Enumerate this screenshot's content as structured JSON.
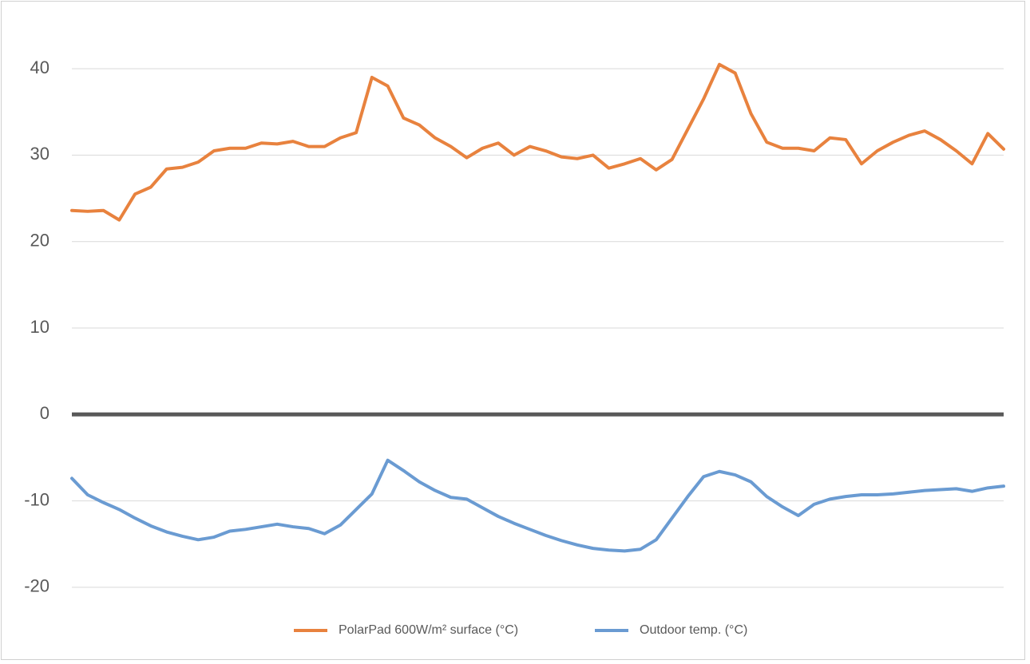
{
  "chart_data": {
    "type": "line",
    "ylim": [
      -25,
      45
    ],
    "yticks": [
      -20,
      -10,
      0,
      10,
      20,
      30,
      40
    ],
    "grid": true,
    "legend": "bottom",
    "series": [
      {
        "name": "PolarPad 600W/m² surface (°C)",
        "color": "#e8823e",
        "values": [
          23.6,
          23.5,
          23.6,
          22.5,
          25.5,
          26.3,
          28.4,
          28.6,
          29.2,
          30.5,
          30.8,
          30.8,
          31.4,
          31.3,
          31.6,
          31.0,
          31.0,
          32.0,
          32.6,
          39.0,
          38.0,
          34.3,
          33.5,
          32.0,
          31.0,
          29.7,
          30.8,
          31.4,
          30.0,
          31.0,
          30.5,
          29.8,
          29.6,
          30.0,
          28.5,
          29.0,
          29.6,
          28.3,
          29.5,
          33.0,
          36.5,
          40.5,
          39.5,
          34.8,
          31.5,
          30.8,
          30.8,
          30.5,
          32.0,
          31.8,
          29.0,
          30.5,
          31.5,
          32.3,
          32.8,
          31.8,
          30.5,
          29.0,
          32.5,
          30.7
        ]
      },
      {
        "name": "Outdoor temp. (°C)",
        "color": "#6a9bd2",
        "values": [
          -7.4,
          -9.3,
          -10.2,
          -11.0,
          -12.0,
          -12.9,
          -13.6,
          -14.1,
          -14.5,
          -14.2,
          -13.5,
          -13.3,
          -13.0,
          -12.7,
          -13.0,
          -13.2,
          -13.8,
          -12.8,
          -11.0,
          -9.2,
          -5.3,
          -6.5,
          -7.8,
          -8.8,
          -9.6,
          -9.8,
          -10.8,
          -11.8,
          -12.6,
          -13.3,
          -14.0,
          -14.6,
          -15.1,
          -15.5,
          -15.7,
          -15.8,
          -15.6,
          -14.5,
          -12.0,
          -9.5,
          -7.2,
          -6.6,
          -7.0,
          -7.8,
          -9.5,
          -10.7,
          -11.7,
          -10.4,
          -9.8,
          -9.5,
          -9.3,
          -9.3,
          -9.2,
          -9.0,
          -8.8,
          -8.7,
          -8.6,
          -8.9,
          -8.5,
          -8.3
        ]
      }
    ]
  }
}
